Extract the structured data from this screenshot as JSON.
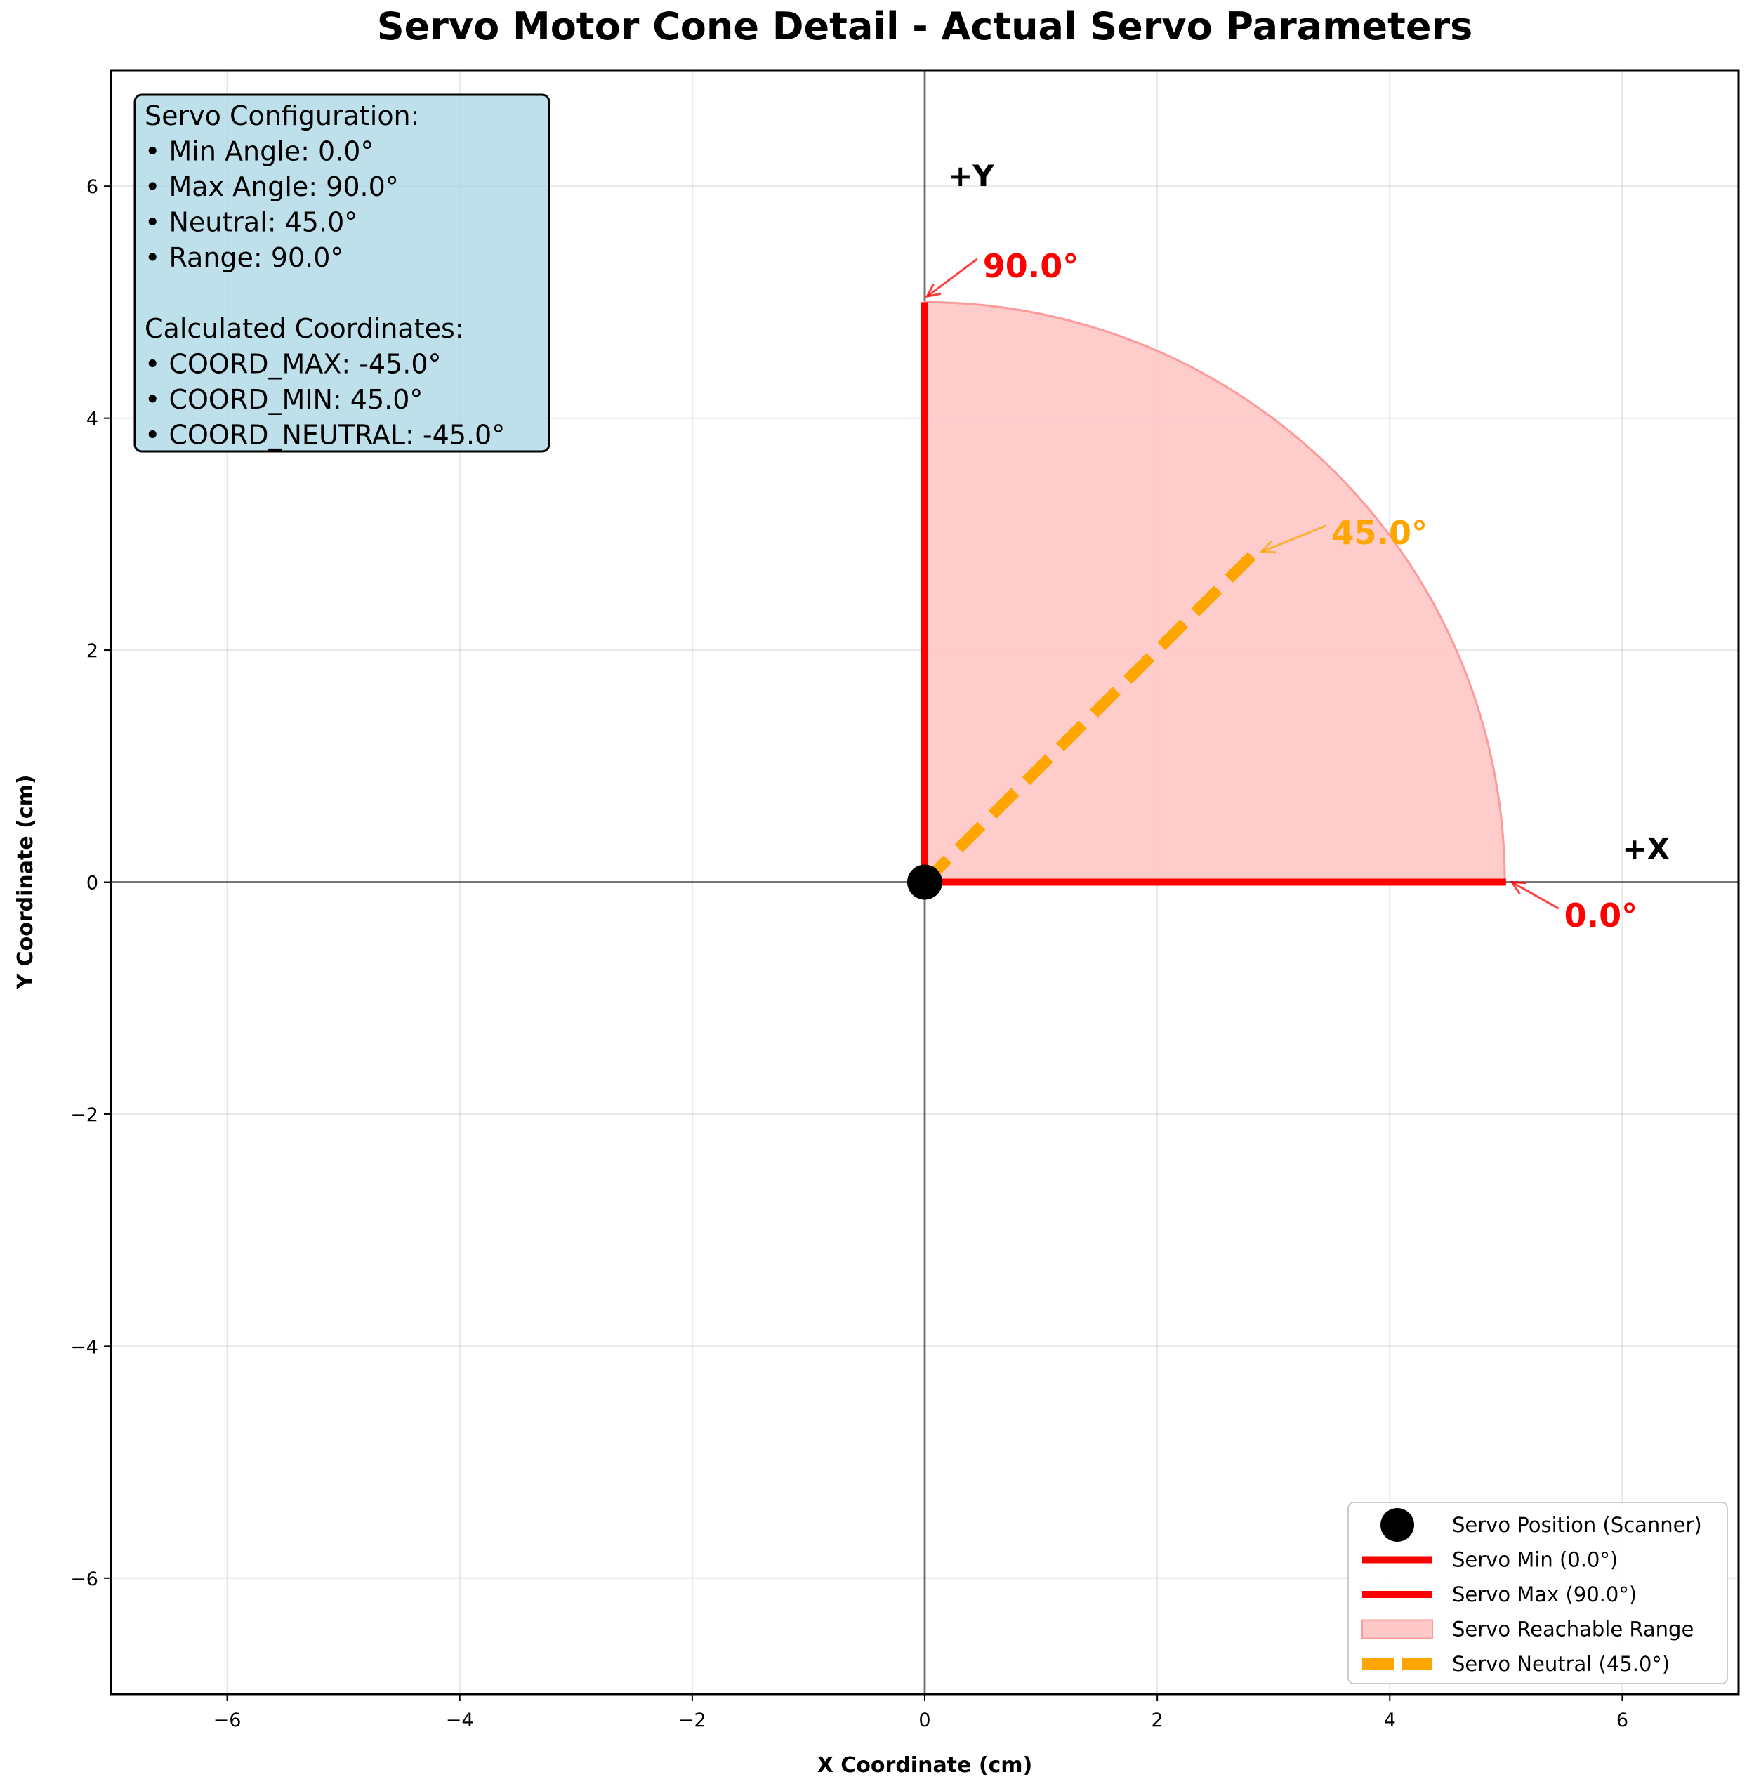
{
  "chart_data": {
    "type": "line",
    "title": "Servo Motor Cone Detail - Actual Servo Parameters",
    "xlabel": "X Coordinate (cm)",
    "ylabel": "Y Coordinate (cm)",
    "xlim": [
      -7,
      7
    ],
    "ylim": [
      -7,
      7
    ],
    "xticks": [
      -6,
      -4,
      -2,
      0,
      2,
      4,
      6
    ],
    "yticks": [
      -6,
      -4,
      -2,
      0,
      2,
      4,
      6
    ],
    "xtick_labels": [
      "−6",
      "−4",
      "−2",
      "0",
      "2",
      "4",
      "6"
    ],
    "ytick_labels": [
      "−6",
      "−4",
      "−2",
      "0",
      "2",
      "4",
      "6"
    ],
    "grid": true,
    "legend_position": "bottom-right",
    "servo_position": {
      "x": 0,
      "y": 0
    },
    "radius": 5,
    "series": [
      {
        "name": "Servo Position (Scanner)",
        "kind": "marker",
        "color": "#000000",
        "points": [
          [
            0,
            0
          ]
        ]
      },
      {
        "name": "Servo Min (0.0°)",
        "kind": "line",
        "color": "#ff0000",
        "points": [
          [
            0,
            0
          ],
          [
            5,
            0
          ]
        ]
      },
      {
        "name": "Servo Max (90.0°)",
        "kind": "line",
        "color": "#ff0000",
        "points": [
          [
            0,
            0
          ],
          [
            0,
            5
          ]
        ]
      },
      {
        "name": "Servo Reachable Range",
        "kind": "sector",
        "color": "#ffc9c9",
        "edge_color": "#ff9a9a",
        "angle_start": 0,
        "angle_end": 90,
        "radius": 5
      },
      {
        "name": "Servo Neutral (45.0°)",
        "kind": "dashed",
        "color": "#ffa500",
        "points": [
          [
            0,
            0
          ],
          [
            2.9,
            2.9
          ]
        ]
      }
    ],
    "axis_labels": [
      {
        "text": "+Y",
        "x": 0.2,
        "y": 6.0
      },
      {
        "text": "+X",
        "x": 6.0,
        "y": 0.2
      }
    ],
    "annotations": [
      {
        "text": "90.0°",
        "color": "#ff0000",
        "text_x": 0.5,
        "text_y": 5.3,
        "arrow_x": 0.02,
        "arrow_y": 5.05
      },
      {
        "text": "45.0°",
        "color": "#ffa500",
        "text_x": 3.5,
        "text_y": 3.0,
        "arrow_x": 2.9,
        "arrow_y": 2.85
      },
      {
        "text": "0.0°",
        "color": "#ff0000",
        "text_x": 5.5,
        "text_y": -0.3,
        "arrow_x": 5.05,
        "arrow_y": 0.0
      }
    ],
    "info_box": {
      "lines": [
        "Servo Configuration:",
        "• Min Angle: 0.0°",
        "• Max Angle: 90.0°",
        "• Neutral: 45.0°",
        "• Range: 90.0°",
        "",
        "Calculated Coordinates:",
        "• COORD_MAX: -45.0°",
        "• COORD_MIN: 45.0°",
        "• COORD_NEUTRAL: -45.0°"
      ],
      "background": "#add8e6"
    }
  }
}
